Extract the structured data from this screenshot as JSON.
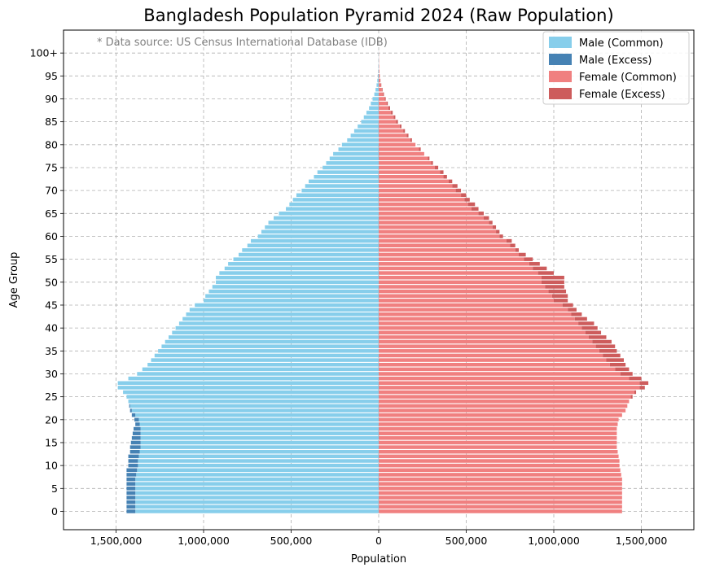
{
  "chart_data": {
    "type": "bar",
    "orientation": "horizontal",
    "title": "Bangladesh Population Pyramid 2024 (Raw Population)",
    "annotation": "* Data source: US Census International Database (IDB)",
    "xlabel": "Population",
    "ylabel": "Age Group",
    "xlim": [
      -1800000,
      1800000
    ],
    "ylim": [
      -4,
      105
    ],
    "x_ticks": [
      -1500000,
      -1000000,
      -500000,
      0,
      500000,
      1000000,
      1500000
    ],
    "x_tick_labels": [
      "1,500,000",
      "1,000,000",
      "500,000",
      "0",
      "500,000",
      "1,000,000",
      "1,500,000"
    ],
    "y_ticks": [
      0,
      5,
      10,
      15,
      20,
      25,
      30,
      35,
      40,
      45,
      50,
      55,
      60,
      65,
      70,
      75,
      80,
      85,
      90,
      95,
      100
    ],
    "y_tick_labels": [
      "0",
      "5",
      "10",
      "15",
      "20",
      "25",
      "30",
      "35",
      "40",
      "45",
      "50",
      "55",
      "60",
      "65",
      "70",
      "75",
      "80",
      "85",
      "90",
      "95",
      "100+"
    ],
    "grid": true,
    "legend_position": "top-right",
    "colors": {
      "male_common": "#87ceeb",
      "male_excess": "#4682b4",
      "female_common": "#f08080",
      "female_excess": "#cd5c5c"
    },
    "series": [
      {
        "name": "Male (Common)",
        "key": "male_common"
      },
      {
        "name": "Male (Excess)",
        "key": "male_excess"
      },
      {
        "name": "Female (Common)",
        "key": "female_common"
      },
      {
        "name": "Female (Excess)",
        "key": "female_excess"
      }
    ],
    "ages": [
      0,
      1,
      2,
      3,
      4,
      5,
      6,
      7,
      8,
      9,
      10,
      11,
      12,
      13,
      14,
      15,
      16,
      17,
      18,
      19,
      20,
      21,
      22,
      23,
      24,
      25,
      26,
      27,
      28,
      29,
      30,
      31,
      32,
      33,
      34,
      35,
      36,
      37,
      38,
      39,
      40,
      41,
      42,
      43,
      44,
      45,
      46,
      47,
      48,
      49,
      50,
      51,
      52,
      53,
      54,
      55,
      56,
      57,
      58,
      59,
      60,
      61,
      62,
      63,
      64,
      65,
      66,
      67,
      68,
      69,
      70,
      71,
      72,
      73,
      74,
      75,
      76,
      77,
      78,
      79,
      80,
      81,
      82,
      83,
      84,
      85,
      86,
      87,
      88,
      89,
      90,
      91,
      92,
      93,
      94,
      95,
      96,
      97,
      98,
      99,
      100
    ],
    "male": [
      1440000,
      1440000,
      1440000,
      1440000,
      1440000,
      1440000,
      1440000,
      1440000,
      1440000,
      1440000,
      1430000,
      1430000,
      1430000,
      1420000,
      1420000,
      1415000,
      1410000,
      1405000,
      1400000,
      1390000,
      1395000,
      1410000,
      1420000,
      1425000,
      1430000,
      1440000,
      1460000,
      1490000,
      1490000,
      1430000,
      1380000,
      1350000,
      1320000,
      1300000,
      1280000,
      1260000,
      1240000,
      1220000,
      1200000,
      1180000,
      1160000,
      1140000,
      1120000,
      1100000,
      1080000,
      1050000,
      1000000,
      990000,
      970000,
      950000,
      930000,
      930000,
      910000,
      880000,
      860000,
      830000,
      800000,
      780000,
      750000,
      730000,
      690000,
      670000,
      650000,
      630000,
      600000,
      570000,
      530000,
      510000,
      490000,
      470000,
      440000,
      420000,
      400000,
      370000,
      350000,
      320000,
      300000,
      280000,
      260000,
      230000,
      210000,
      180000,
      160000,
      140000,
      120000,
      100000,
      85000,
      70000,
      55000,
      45000,
      35000,
      25000,
      18000,
      12000,
      8000,
      5000,
      3000,
      2000,
      1000,
      700,
      500
    ],
    "female": [
      1390000,
      1390000,
      1390000,
      1390000,
      1390000,
      1390000,
      1390000,
      1390000,
      1385000,
      1380000,
      1375000,
      1375000,
      1370000,
      1365000,
      1360000,
      1360000,
      1360000,
      1360000,
      1360000,
      1365000,
      1370000,
      1390000,
      1410000,
      1420000,
      1430000,
      1450000,
      1470000,
      1520000,
      1540000,
      1500000,
      1450000,
      1430000,
      1410000,
      1400000,
      1380000,
      1360000,
      1350000,
      1330000,
      1300000,
      1270000,
      1250000,
      1230000,
      1190000,
      1160000,
      1130000,
      1110000,
      1080000,
      1080000,
      1070000,
      1060000,
      1060000,
      1060000,
      1000000,
      960000,
      920000,
      880000,
      840000,
      800000,
      780000,
      760000,
      710000,
      690000,
      670000,
      650000,
      630000,
      600000,
      570000,
      550000,
      520000,
      500000,
      470000,
      450000,
      420000,
      390000,
      370000,
      340000,
      310000,
      290000,
      260000,
      240000,
      210000,
      190000,
      170000,
      150000,
      130000,
      110000,
      95000,
      80000,
      65000,
      52000,
      40000,
      30000,
      22000,
      15000,
      10000,
      6000,
      4000,
      2500,
      1500,
      900,
      600
    ]
  }
}
